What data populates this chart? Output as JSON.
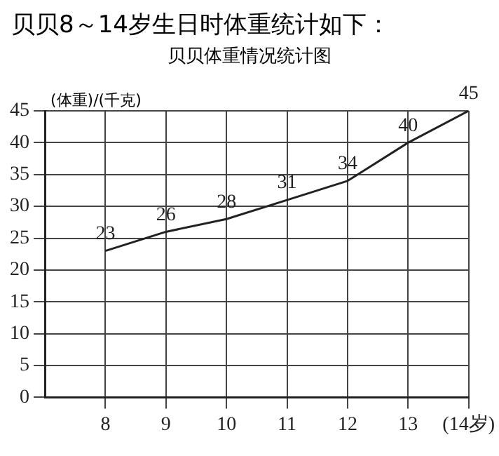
{
  "chart_data": {
    "type": "line",
    "title": "贝贝8～14岁生日时体重统计如下：",
    "subtitle": "贝贝体重情况统计图",
    "ylabel": "(体重)/(千克)",
    "x": [
      8,
      9,
      10,
      11,
      12,
      13,
      14
    ],
    "series": [
      {
        "color": "#222222",
        "values": [
          23,
          26,
          28,
          31,
          34,
          40,
          45
        ]
      }
    ],
    "xlim": [
      7,
      14
    ],
    "xticks": [
      8,
      9,
      10,
      11,
      12,
      13,
      {
        "value": 14,
        "label": "(14岁)"
      }
    ],
    "ylim": [
      0,
      45
    ],
    "yticks": [
      0,
      5,
      10,
      15,
      20,
      25,
      30,
      35,
      40,
      45
    ],
    "grid": true,
    "data_labels": true,
    "marker": "none",
    "line_style": "solid",
    "legend": false
  }
}
